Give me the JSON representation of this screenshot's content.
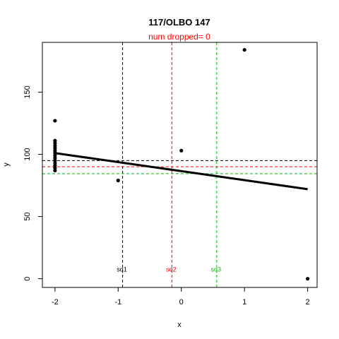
{
  "chart_data": {
    "type": "scatter",
    "title": "117/OLBO 147",
    "subtitle": "num dropped= 0",
    "xlabel": "x",
    "ylabel": "y",
    "xlim": [
      -2.2,
      2.15
    ],
    "ylim": [
      -7,
      190
    ],
    "x_ticks": [
      -2,
      -1,
      0,
      1,
      2
    ],
    "x_tick_labels": [
      "-2",
      "-1",
      "0",
      "1",
      "2"
    ],
    "y_ticks": [
      0,
      50,
      100,
      150
    ],
    "y_tick_labels": [
      "0",
      "50",
      "100",
      "150"
    ],
    "grid": false,
    "colors": {
      "points": "#000000",
      "fit": "#000000",
      "sq1": "#000000",
      "sq2": "#ff0000",
      "sq3": "#00bb00"
    },
    "points": [
      {
        "x": -2,
        "y": 127
      },
      {
        "x": -2,
        "y": 111
      },
      {
        "x": -2,
        "y": 109
      },
      {
        "x": -2,
        "y": 107
      },
      {
        "x": -2,
        "y": 105
      },
      {
        "x": -2,
        "y": 103
      },
      {
        "x": -2,
        "y": 101
      },
      {
        "x": -2,
        "y": 99
      },
      {
        "x": -2,
        "y": 97
      },
      {
        "x": -2,
        "y": 95
      },
      {
        "x": -2,
        "y": 93
      },
      {
        "x": -2,
        "y": 91
      },
      {
        "x": -2,
        "y": 89
      },
      {
        "x": -2,
        "y": 87
      },
      {
        "x": -1,
        "y": 79
      },
      {
        "x": 0,
        "y": 103
      },
      {
        "x": 1,
        "y": 184
      },
      {
        "x": 2,
        "y": 0
      }
    ],
    "fit_line": {
      "x": [
        -2,
        2
      ],
      "y": [
        101,
        72
      ]
    },
    "vlines": [
      {
        "name": "sq1",
        "x": -0.93,
        "color": "#000000"
      },
      {
        "name": "sq2",
        "x": -0.15,
        "color": "#ff0000"
      },
      {
        "name": "sq3",
        "x": 0.56,
        "color": "#00bb00"
      }
    ],
    "hlines": [
      {
        "y": 95,
        "color": "#000000"
      },
      {
        "y": 90,
        "color": "#ff0000"
      },
      {
        "y": 84.5,
        "color": "#00bb00"
      }
    ],
    "vline_labels_y": 7.5
  }
}
